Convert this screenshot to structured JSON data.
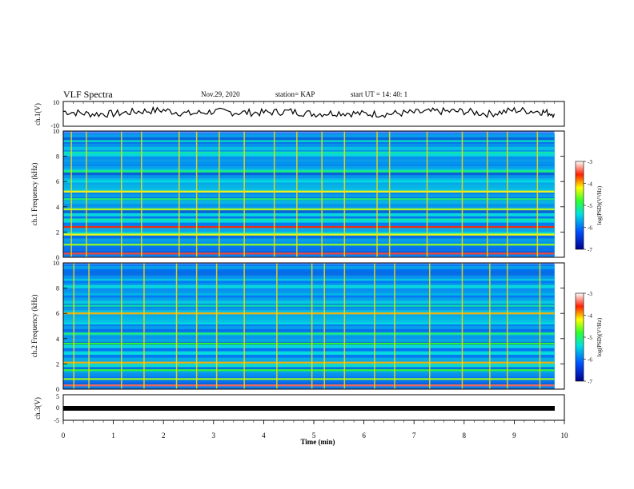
{
  "header": {
    "title": "VLF Spectra",
    "date": "Nov.29, 2020",
    "station": "station= KAP",
    "start": "start  UT  =   14: 40: 1"
  },
  "colorbar": {
    "label": "log(PSD)(V²/Hz)",
    "ticks": [
      "-3",
      "-4",
      "-5",
      "-6",
      "-7"
    ]
  },
  "chart_data": [
    {
      "type": "line",
      "name": "ch1-waveform",
      "ylabel": "ch.1(V)",
      "ylim": [
        -10,
        10
      ],
      "y_ticks": [
        "10",
        "-10"
      ],
      "x": [
        0.0,
        0.5,
        1.0,
        1.5,
        2.0,
        2.5,
        3.0,
        3.5,
        4.0,
        4.5,
        5.0,
        5.5,
        6.0,
        6.5,
        7.0,
        7.5,
        8.0,
        8.5,
        9.0,
        9.5,
        9.8
      ],
      "values": [
        2,
        0,
        0,
        2,
        3,
        0,
        2,
        1,
        1,
        2,
        0,
        1,
        0,
        0,
        1,
        2,
        2,
        0,
        3,
        2,
        0
      ]
    },
    {
      "type": "heatmap",
      "name": "ch1-spectrogram",
      "ylabel": "ch.1 Frequency (kHz)",
      "ylim": [
        0,
        10
      ],
      "y_ticks": [
        "0",
        "2",
        "4",
        "6",
        "8",
        "10"
      ],
      "zlim": [
        -7,
        -3
      ],
      "bands_khz": [
        {
          "f": 0.3,
          "level": -3.5
        },
        {
          "f": 1.0,
          "level": -4.5
        },
        {
          "f": 1.8,
          "level": -4.2
        },
        {
          "f": 2.4,
          "level": -3.6
        },
        {
          "f": 3.0,
          "level": -5.2
        },
        {
          "f": 3.8,
          "level": -4.4
        },
        {
          "f": 4.6,
          "level": -5.0
        },
        {
          "f": 5.2,
          "level": -4.2
        },
        {
          "f": 6.0,
          "level": -5.4
        },
        {
          "f": 6.8,
          "level": -5.0
        },
        {
          "f": 7.4,
          "level": -5.8
        },
        {
          "f": 8.3,
          "level": -5.2
        },
        {
          "f": 9.2,
          "level": -5.3
        }
      ],
      "impulses_min": [
        0.15,
        0.45,
        1.15,
        1.55,
        2.3,
        2.65,
        3.1,
        3.6,
        4.2,
        4.65,
        5.15,
        5.6,
        6.25,
        6.5,
        7.25,
        7.95,
        8.45,
        8.85,
        9.45
      ]
    },
    {
      "type": "heatmap",
      "name": "ch2-spectrogram",
      "ylabel": "ch.2 Frequency (kHz)",
      "ylim": [
        0,
        10
      ],
      "y_ticks": [
        "0",
        "2",
        "4",
        "6",
        "8",
        "10"
      ],
      "zlim": [
        -7,
        -3
      ],
      "bands_khz": [
        {
          "f": 0.3,
          "level": -3.4
        },
        {
          "f": 0.8,
          "level": -4.5
        },
        {
          "f": 1.5,
          "level": -4.8
        },
        {
          "f": 2.1,
          "level": -4.0
        },
        {
          "f": 2.8,
          "level": -5.4
        },
        {
          "f": 3.6,
          "level": -4.8
        },
        {
          "f": 4.4,
          "level": -5.0
        },
        {
          "f": 5.2,
          "level": -5.4
        },
        {
          "f": 6.0,
          "level": -4.0
        },
        {
          "f": 6.6,
          "level": -5.2
        },
        {
          "f": 7.5,
          "level": -5.6
        },
        {
          "f": 8.5,
          "level": -6.0
        },
        {
          "f": 9.4,
          "level": -6.0
        }
      ],
      "impulses_min": [
        0.2,
        0.5,
        1.15,
        1.6,
        2.25,
        2.65,
        3.05,
        3.6,
        4.25,
        4.95,
        5.2,
        5.6,
        6.2,
        6.6,
        7.3,
        7.95,
        8.5,
        8.85,
        9.5
      ]
    },
    {
      "type": "line",
      "name": "ch3-waveform",
      "ylabel": "ch.3(V)",
      "ylim": [
        -5,
        5
      ],
      "y_ticks": [
        "5",
        "0",
        "-5"
      ],
      "x": [
        0,
        9.8
      ],
      "values": [
        0,
        0
      ]
    }
  ],
  "xaxis": {
    "label": "Time  (min)",
    "ticks": [
      "0",
      "1",
      "2",
      "3",
      "4",
      "5",
      "6",
      "7",
      "8",
      "9",
      "10"
    ],
    "range": [
      0,
      10
    ]
  }
}
